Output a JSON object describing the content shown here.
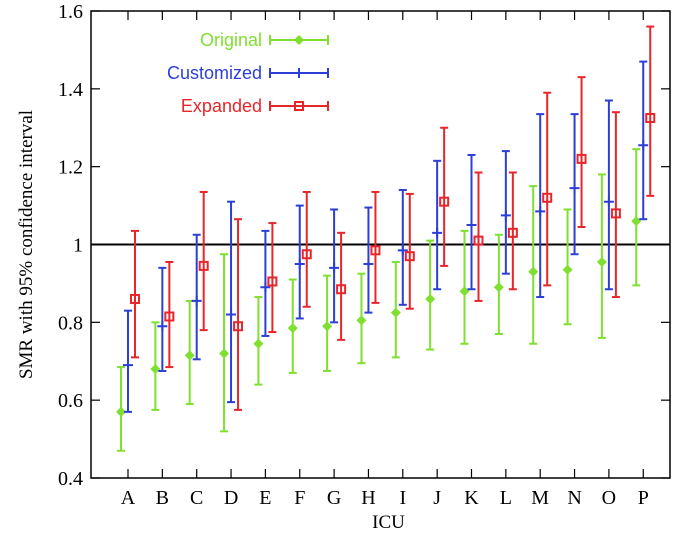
{
  "chart_data": {
    "type": "errorbar",
    "xlabel": "ICU",
    "ylabel": "SMR with 95% confidence interval",
    "ylim": [
      0.4,
      1.6
    ],
    "yticks": [
      "0.4",
      "0.6",
      "0.8",
      "1",
      "1.2",
      "1.4",
      "1.6"
    ],
    "reference_line": 1.0,
    "categories": [
      "A",
      "B",
      "C",
      "D",
      "E",
      "F",
      "G",
      "H",
      "I",
      "J",
      "K",
      "L",
      "M",
      "N",
      "O",
      "P"
    ],
    "legend": "top-left",
    "series": [
      {
        "name": "Original",
        "color": "#7fe030",
        "marker": "diamond",
        "values": [
          0.57,
          0.68,
          0.715,
          0.72,
          0.745,
          0.785,
          0.79,
          0.805,
          0.825,
          0.86,
          0.88,
          0.89,
          0.93,
          0.935,
          0.955,
          1.06
        ],
        "lower": [
          0.47,
          0.575,
          0.59,
          0.52,
          0.64,
          0.67,
          0.675,
          0.695,
          0.71,
          0.73,
          0.745,
          0.77,
          0.745,
          0.795,
          0.76,
          0.895
        ],
        "upper": [
          0.685,
          0.8,
          0.855,
          0.975,
          0.865,
          0.91,
          0.92,
          0.925,
          0.955,
          1.01,
          1.035,
          1.025,
          1.15,
          1.09,
          1.18,
          1.245
        ]
      },
      {
        "name": "Customized",
        "color": "#2b3fd8",
        "marker": "plus",
        "values": [
          0.69,
          0.79,
          0.855,
          0.82,
          0.89,
          0.95,
          0.94,
          0.95,
          0.985,
          1.03,
          1.05,
          1.075,
          1.085,
          1.145,
          1.11,
          1.255
        ],
        "lower": [
          0.57,
          0.675,
          0.705,
          0.595,
          0.765,
          0.81,
          0.8,
          0.825,
          0.845,
          0.885,
          0.885,
          0.925,
          0.865,
          0.975,
          0.885,
          1.065
        ],
        "upper": [
          0.83,
          0.94,
          1.025,
          1.11,
          1.035,
          1.1,
          1.09,
          1.095,
          1.14,
          1.215,
          1.23,
          1.24,
          1.335,
          1.335,
          1.37,
          1.47
        ]
      },
      {
        "name": "Expanded",
        "color": "#e8262a",
        "marker": "square",
        "values": [
          0.86,
          0.815,
          0.945,
          0.79,
          0.905,
          0.975,
          0.885,
          0.985,
          0.97,
          1.11,
          1.01,
          1.03,
          1.12,
          1.22,
          1.08,
          1.325
        ],
        "lower": [
          0.71,
          0.685,
          0.78,
          0.575,
          0.775,
          0.84,
          0.755,
          0.85,
          0.835,
          0.945,
          0.855,
          0.885,
          0.895,
          1.045,
          0.865,
          1.125
        ],
        "upper": [
          1.035,
          0.955,
          1.135,
          1.065,
          1.055,
          1.135,
          1.03,
          1.135,
          1.13,
          1.3,
          1.185,
          1.185,
          1.39,
          1.43,
          1.34,
          1.56
        ]
      }
    ]
  }
}
